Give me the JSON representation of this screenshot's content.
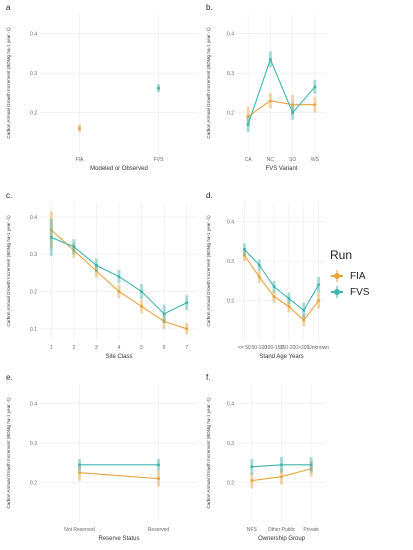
{
  "colors": {
    "FIA": "#E8A33D",
    "FVS": "#3FB5AE",
    "grid": "#EBEBEB",
    "axis_text": "#666666"
  },
  "legend": {
    "title": "Run",
    "items": [
      {
        "label": "FIA",
        "color": "#E8A33D"
      },
      {
        "label": "FVS",
        "color": "#3FB5AE"
      }
    ]
  },
  "chart_data": [
    {
      "panel": "a",
      "type": "scatter",
      "categories": [
        "FIA",
        "FVS"
      ],
      "xlabel": "Modeled or Observed",
      "ylabel": "Carbon Annual Growth Increment (BDMg ha-1 year -1)",
      "ylim": [
        0.1,
        0.45
      ],
      "yticks": [
        0.2,
        0.3,
        0.4
      ],
      "connect_lines": false,
      "series": [
        {
          "name": "FIA",
          "categories": [
            "FIA"
          ],
          "values": [
            0.16
          ],
          "err": [
            0.01
          ]
        },
        {
          "name": "FVS",
          "categories": [
            "FVS"
          ],
          "values": [
            0.262
          ],
          "err": [
            0.01
          ]
        }
      ]
    },
    {
      "panel": "b.",
      "type": "line",
      "categories": [
        "CA",
        "NC",
        "SO",
        "WS"
      ],
      "xlabel": "FVS Variant",
      "ylabel": "Carbon Annual Growth Increment (BDMg ha-1 year -1)",
      "ylim": [
        0.1,
        0.45
      ],
      "yticks": [
        0.2,
        0.3,
        0.4
      ],
      "series": [
        {
          "name": "FIA",
          "values": [
            0.19,
            0.23,
            0.22,
            0.22
          ],
          "err": [
            0.025,
            0.02,
            0.025,
            0.02
          ]
        },
        {
          "name": "FVS",
          "values": [
            0.17,
            0.335,
            0.2,
            0.265
          ],
          "err": [
            0.02,
            0.02,
            0.018,
            0.018
          ]
        }
      ]
    },
    {
      "panel": "c.",
      "type": "line",
      "categories": [
        "1",
        "2",
        "3",
        "4",
        "5",
        "6",
        "7"
      ],
      "xlabel": "Site Class",
      "ylabel": "Carbon Annual Growth Increment (BDMg ha-1 year -1)",
      "ylim": [
        0.07,
        0.44
      ],
      "yticks": [
        0.1,
        0.2,
        0.3,
        0.4
      ],
      "series": [
        {
          "name": "FIA",
          "values": [
            0.365,
            0.31,
            0.255,
            0.2,
            0.16,
            0.12,
            0.1
          ],
          "err": [
            0.05,
            0.02,
            0.018,
            0.018,
            0.018,
            0.02,
            0.015
          ]
        },
        {
          "name": "FVS",
          "values": [
            0.345,
            0.32,
            0.27,
            0.24,
            0.2,
            0.14,
            0.17
          ],
          "err": [
            0.05,
            0.02,
            0.018,
            0.018,
            0.02,
            0.025,
            0.02
          ]
        }
      ]
    },
    {
      "panel": "d.",
      "type": "line",
      "categories": [
        "<= 50",
        "50-100",
        "100-150",
        "150-200",
        ">200",
        "Unknown"
      ],
      "xlabel": "Stand Age Years",
      "ylabel": "Carbon Annual Growth Increment (BDMg ha-1 year -1)",
      "ylim": [
        0.1,
        0.45
      ],
      "yticks": [
        0.2,
        0.3,
        0.4
      ],
      "series": [
        {
          "name": "FIA",
          "values": [
            0.315,
            0.26,
            0.21,
            0.185,
            0.15,
            0.2
          ],
          "err": [
            0.015,
            0.015,
            0.015,
            0.015,
            0.015,
            0.02
          ]
        },
        {
          "name": "FVS",
          "values": [
            0.33,
            0.29,
            0.235,
            0.205,
            0.175,
            0.24
          ],
          "err": [
            0.015,
            0.015,
            0.015,
            0.015,
            0.02,
            0.02
          ]
        }
      ]
    },
    {
      "panel": "e.",
      "type": "line",
      "categories": [
        "Not Reserved",
        "Reserved"
      ],
      "xlabel": "Reserve Status",
      "ylabel": "Carbon Annual Growth Increment (BDMg ha-1 year -1)",
      "ylim": [
        0.1,
        0.45
      ],
      "yticks": [
        0.2,
        0.3,
        0.4
      ],
      "series": [
        {
          "name": "FIA",
          "values": [
            0.225,
            0.21
          ],
          "err": [
            0.02,
            0.02
          ]
        },
        {
          "name": "FVS",
          "values": [
            0.245,
            0.245
          ],
          "err": [
            0.015,
            0.015
          ]
        }
      ]
    },
    {
      "panel": "f.",
      "type": "line",
      "categories": [
        "NFS",
        "Other Public",
        "Private"
      ],
      "xlabel": "Ownership Group",
      "ylabel": "Carbon Annual Growth Increment (BDMg ha-1 year -1)",
      "ylim": [
        0.1,
        0.45
      ],
      "yticks": [
        0.2,
        0.3,
        0.4
      ],
      "series": [
        {
          "name": "FIA",
          "values": [
            0.205,
            0.215,
            0.235
          ],
          "err": [
            0.02,
            0.02,
            0.02
          ]
        },
        {
          "name": "FVS",
          "values": [
            0.24,
            0.245,
            0.245
          ],
          "err": [
            0.02,
            0.02,
            0.02
          ]
        }
      ]
    }
  ]
}
